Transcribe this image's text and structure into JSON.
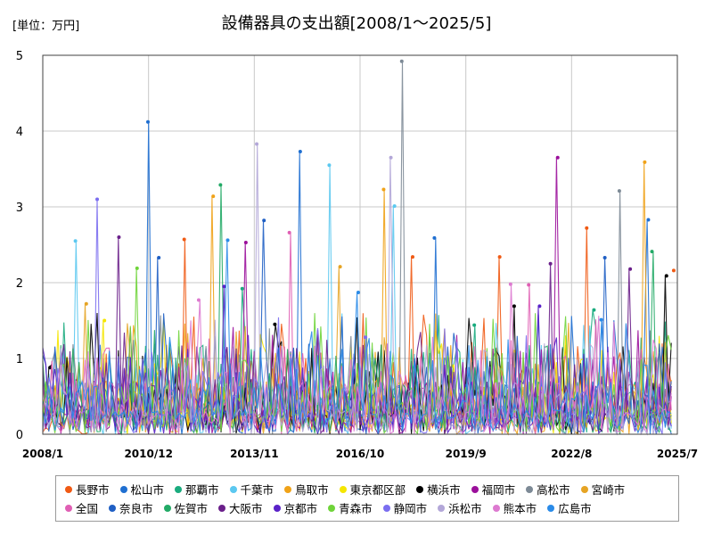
{
  "unit_label": "[単位：万円]",
  "chart_data": {
    "type": "line",
    "title": "設備器具の支出額[2008/1～2025/5]",
    "xlabel": "",
    "ylabel": "万円",
    "ylim": [
      0,
      5
    ],
    "yticks": [
      "0",
      "1",
      "2",
      "3",
      "4",
      "5"
    ],
    "xlim": [
      2008.0,
      2025.5
    ],
    "xticks": [
      {
        "label": "2008/1",
        "value": 2008.0
      },
      {
        "label": "2010/12",
        "value": 2010.917
      },
      {
        "label": "2013/11",
        "value": 2013.833
      },
      {
        "label": "2016/10",
        "value": 2016.75
      },
      {
        "label": "2019/9",
        "value": 2019.667
      },
      {
        "label": "2022/8",
        "value": 2022.583
      },
      {
        "label": "2025/7",
        "value": 2025.5
      }
    ],
    "grid": true,
    "legend_position": "bottom",
    "series": [
      {
        "name": "長野市",
        "color": "#f05a14",
        "peaks": [
          [
            2011.9,
            2.57
          ],
          [
            2018.2,
            2.34
          ],
          [
            2020.6,
            2.34
          ],
          [
            2023.0,
            2.72
          ],
          [
            2025.4,
            2.16
          ]
        ]
      },
      {
        "name": "松山市",
        "color": "#1f6fd1",
        "peaks": [
          [
            2010.9,
            4.12
          ],
          [
            2015.1,
            3.73
          ],
          [
            2018.8,
            2.59
          ],
          [
            2024.7,
            2.83
          ]
        ]
      },
      {
        "name": "那覇市",
        "color": "#1aab7e",
        "peaks": [
          [
            2013.5,
            1.92
          ],
          [
            2019.9,
            1.44
          ],
          [
            2023.2,
            1.64
          ]
        ]
      },
      {
        "name": "千葉市",
        "color": "#5bc8f0",
        "peaks": [
          [
            2008.9,
            2.55
          ],
          [
            2015.9,
            3.55
          ],
          [
            2017.7,
            3.01
          ]
        ]
      },
      {
        "name": "鳥取市",
        "color": "#f0a218",
        "peaks": [
          [
            2012.7,
            3.14
          ],
          [
            2017.4,
            3.23
          ],
          [
            2024.6,
            3.59
          ]
        ]
      },
      {
        "name": "東京都区部",
        "color": "#f5e600",
        "peaks": [
          [
            2009.7,
            1.5
          ],
          [
            2019.3,
            0.9
          ]
        ]
      },
      {
        "name": "横浜市",
        "color": "#000000",
        "peaks": [
          [
            2008.2,
            0.88
          ],
          [
            2014.4,
            1.45
          ],
          [
            2021.0,
            1.69
          ],
          [
            2025.2,
            2.09
          ]
        ]
      },
      {
        "name": "福岡市",
        "color": "#9b0f9b",
        "peaks": [
          [
            2013.6,
            2.53
          ],
          [
            2022.2,
            3.65
          ]
        ]
      },
      {
        "name": "高松市",
        "color": "#7d8a96",
        "peaks": [
          [
            2017.9,
            4.92
          ],
          [
            2023.9,
            3.21
          ]
        ]
      },
      {
        "name": "宮崎市",
        "color": "#e6a424",
        "peaks": [
          [
            2009.2,
            1.72
          ],
          [
            2016.2,
            2.21
          ]
        ]
      },
      {
        "name": "全国",
        "color": "#e05fb4",
        "peaks": [
          [
            2014.8,
            2.66
          ],
          [
            2021.4,
            1.97
          ]
        ]
      },
      {
        "name": "奈良市",
        "color": "#1f5fc4",
        "peaks": [
          [
            2011.2,
            2.33
          ],
          [
            2014.1,
            2.82
          ],
          [
            2023.5,
            2.33
          ]
        ]
      },
      {
        "name": "佐賀市",
        "color": "#22aa66",
        "peaks": [
          [
            2012.9,
            3.29
          ],
          [
            2024.8,
            2.41
          ]
        ]
      },
      {
        "name": "大阪市",
        "color": "#6a1f8a",
        "peaks": [
          [
            2010.1,
            2.6
          ],
          [
            2022.0,
            2.25
          ],
          [
            2024.2,
            2.18
          ]
        ]
      },
      {
        "name": "京都市",
        "color": "#5a22c8",
        "peaks": [
          [
            2013.0,
            1.95
          ],
          [
            2021.7,
            1.69
          ]
        ]
      },
      {
        "name": "青森市",
        "color": "#6fd43a",
        "peaks": [
          [
            2010.6,
            2.19
          ],
          [
            2020.5,
            0.7
          ]
        ]
      },
      {
        "name": "静岡市",
        "color": "#7b6ef0",
        "peaks": [
          [
            2009.5,
            3.1
          ],
          [
            2016.9,
            1.28
          ]
        ]
      },
      {
        "name": "浜松市",
        "color": "#b3a7d8",
        "peaks": [
          [
            2013.9,
            3.83
          ],
          [
            2017.6,
            3.65
          ]
        ]
      },
      {
        "name": "熊本市",
        "color": "#dd7ad0",
        "peaks": [
          [
            2012.3,
            1.77
          ],
          [
            2020.9,
            1.98
          ]
        ]
      },
      {
        "name": "広島市",
        "color": "#2a8be8",
        "peaks": [
          [
            2013.1,
            2.56
          ],
          [
            2016.7,
            1.87
          ],
          [
            2023.4,
            1.51
          ]
        ]
      }
    ]
  }
}
